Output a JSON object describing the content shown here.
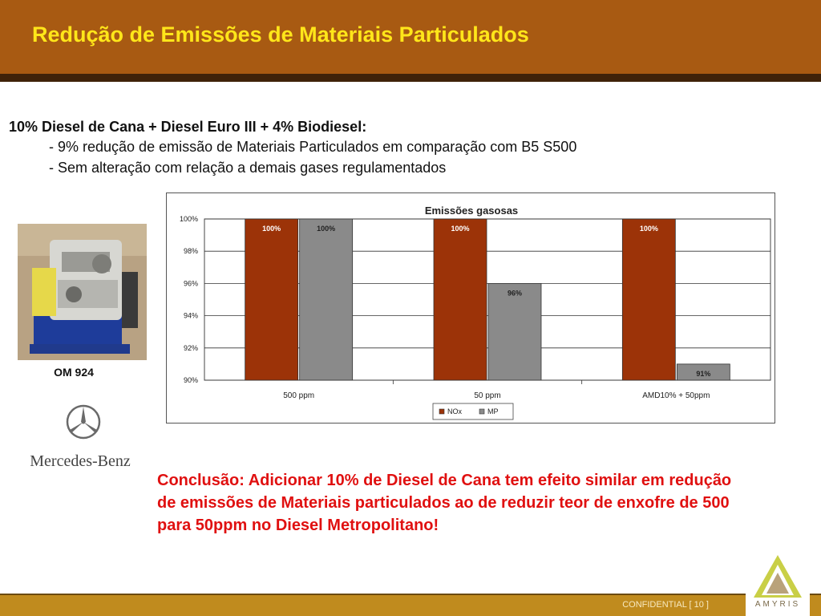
{
  "slide": {
    "title": "Redução de Emissões de Materiais Particulados",
    "intro_head": "10% Diesel de Cana +  Diesel Euro III + 4% Biodiesel:",
    "bullets": [
      "- 9% redução de emissão de Materiais Particulados em comparação com B5 S500",
      "- Sem alteração com relação a demais gases regulamentados"
    ],
    "engine_caption": "OM 924",
    "brand_text": "Mercedes-Benz",
    "conclusion": "Conclusão: Adicionar 10% de Diesel de Cana tem efeito similar em redução de emissões de Materiais particulados ao de reduzir teor de enxofre de 500 para 50ppm no Diesel Metropolitano!",
    "footer_text": "CONFIDENTIAL    [ 10 ]",
    "company_logo_text": "AMYRIS"
  },
  "colors": {
    "header": "#a85a12",
    "title": "#ffe61a",
    "nox": "#9c3308",
    "mp": "#8a8a8a",
    "conclusion": "#e01010",
    "footer": "#c08b1e"
  },
  "chart_data": {
    "type": "bar",
    "title": "Emissões gasosas",
    "categories": [
      "500 ppm",
      "50 ppm",
      "AMD10% + 50ppm"
    ],
    "series": [
      {
        "name": "NOx",
        "values": [
          100,
          100,
          100
        ],
        "labels": [
          "100%",
          "100%",
          "100%"
        ],
        "color": "#9c3308"
      },
      {
        "name": "MP",
        "values": [
          100,
          96,
          91
        ],
        "labels": [
          "100%",
          "96%",
          "91%"
        ],
        "color": "#8a8a8a"
      }
    ],
    "yticks": [
      "90%",
      "92%",
      "94%",
      "96%",
      "98%",
      "100%"
    ],
    "ylim": [
      90,
      100
    ],
    "legend_position": "bottom",
    "grid": true
  }
}
